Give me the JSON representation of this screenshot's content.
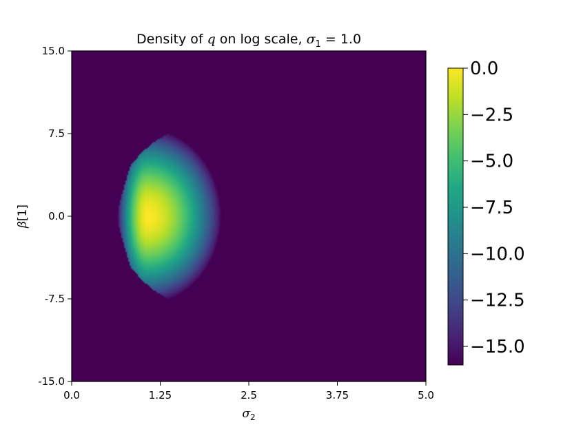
{
  "chart_data": {
    "type": "heatmap",
    "title": "Density of q on log scale, σ₁ = 1.0",
    "title_parts": {
      "prefix": "Density of ",
      "var_q": "q",
      "middle": " on log scale, ",
      "sigma": "σ",
      "sigma_sub": "1",
      "eq": " = 1.0"
    },
    "xlabel": {
      "symbol": "σ",
      "sub": "2"
    },
    "ylabel": {
      "symbol": "β",
      "index": "[1]"
    },
    "xlim": [
      0.0,
      5.0
    ],
    "ylim": [
      -15.0,
      15.0
    ],
    "x_ticks": [
      0.0,
      1.25,
      2.5,
      3.75,
      5.0
    ],
    "x_tick_labels": [
      "0.0",
      "1.25",
      "2.5",
      "3.75",
      "5.0"
    ],
    "y_ticks": [
      15.0,
      7.5,
      0.0,
      -7.5,
      -15.0
    ],
    "y_tick_labels": [
      "15.0",
      "7.5",
      "0.0",
      "-7.5",
      "-15.0"
    ],
    "colorbar": {
      "colormap": "viridis",
      "range": [
        -16.0,
        0.0
      ],
      "ticks": [
        0.0,
        -2.5,
        -5.0,
        -7.5,
        -10.0,
        -12.5,
        -15.0
      ],
      "tick_labels": [
        "0.0",
        "−2.5",
        "−5.0",
        "−7.5",
        "−10.0",
        "−12.5",
        "−15.0"
      ]
    },
    "density": {
      "peak": {
        "sigma2": 1.07,
        "beta1": 0.0,
        "log_density": 0.0
      },
      "support_sigma2": [
        0.65,
        2.1
      ],
      "support_beta1": [
        -8.0,
        8.0
      ],
      "background_log_density": -16.0
    },
    "grid": false
  }
}
